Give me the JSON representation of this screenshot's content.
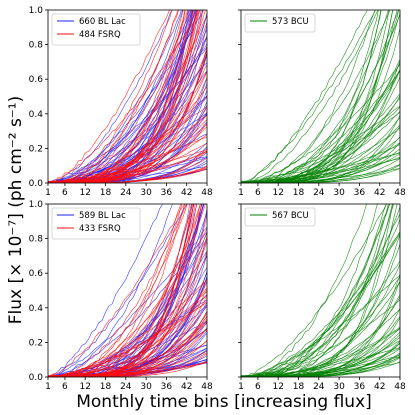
{
  "figure": {
    "ylabel": "Flux [× 10⁻⁷] (ph cm⁻² s⁻¹)",
    "xlabel": "Monthly time bins [increasing flux]"
  },
  "colors": {
    "bl_lac": "#1f1fff",
    "fsrq": "#ff0d0d",
    "bcu": "#008000"
  },
  "chart_data": [
    {
      "type": "line",
      "panel": "top-left",
      "xlim": [
        1,
        48
      ],
      "ylim": [
        0.0,
        1.0
      ],
      "xticks": [
        "1",
        "6",
        "12",
        "18",
        "24",
        "30",
        "36",
        "42",
        "48"
      ],
      "yticks": [
        "0.0",
        "0.2",
        "0.4",
        "0.6",
        "0.8",
        "1.0"
      ],
      "legend_position": "top-left",
      "series": [
        {
          "name": "660 BL Lac",
          "color_key": "bl_lac",
          "count": 660
        },
        {
          "name": "484 FSRQ",
          "color_key": "fsrq",
          "count": 484
        }
      ]
    },
    {
      "type": "line",
      "panel": "top-right",
      "xlim": [
        1,
        48
      ],
      "ylim": [
        0.0,
        1.0
      ],
      "xticks": [
        "1",
        "6",
        "12",
        "18",
        "24",
        "30",
        "36",
        "42",
        "48"
      ],
      "yticks": [],
      "legend_position": "top-left",
      "series": [
        {
          "name": "573 BCU",
          "color_key": "bcu",
          "count": 573
        }
      ]
    },
    {
      "type": "line",
      "panel": "bottom-left",
      "xlim": [
        1,
        48
      ],
      "ylim": [
        0.0,
        1.0
      ],
      "xticks": [
        "1",
        "6",
        "12",
        "18",
        "24",
        "30",
        "36",
        "42",
        "48"
      ],
      "yticks": [
        "0.0",
        "0.2",
        "0.4",
        "0.6",
        "0.8",
        "1.0"
      ],
      "legend_position": "top-left",
      "series": [
        {
          "name": "589 BL Lac",
          "color_key": "bl_lac",
          "count": 589
        },
        {
          "name": "433 FSRQ",
          "color_key": "fsrq",
          "count": 433
        }
      ]
    },
    {
      "type": "line",
      "panel": "bottom-right",
      "xlim": [
        1,
        48
      ],
      "ylim": [
        0.0,
        1.0
      ],
      "xticks": [
        "1",
        "6",
        "12",
        "18",
        "24",
        "30",
        "36",
        "42",
        "48"
      ],
      "yticks": [],
      "legend_position": "top-left",
      "series": [
        {
          "name": "567 BCU",
          "color_key": "bcu",
          "count": 567
        }
      ]
    }
  ]
}
